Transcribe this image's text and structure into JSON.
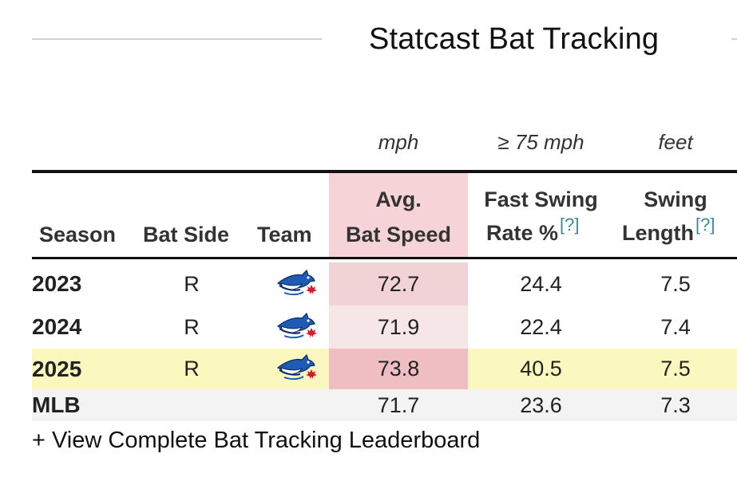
{
  "title": "Statcast Bat Tracking",
  "units": {
    "bat_speed": "mph",
    "fast_swing": "≥ 75 mph",
    "swing_length": "feet"
  },
  "headers": {
    "season": "Season",
    "bat_side": "Bat Side",
    "team": "Team",
    "bat_speed_1": "Avg.",
    "bat_speed_2": "Bat Speed",
    "fast_swing_1": "Fast Swing",
    "fast_swing_2": "Rate %",
    "swing_length_1": "Swing",
    "swing_length_2": "Length",
    "help": "[?]"
  },
  "rows": [
    {
      "season": "2023",
      "bat_side": "R",
      "team_icon": "blue-jays-logo-icon",
      "bat_speed": "72.7",
      "fast_swing": "24.4",
      "swing_length": "7.5",
      "row_bg": "#ffffff",
      "bat_bg": "#f2d3d5"
    },
    {
      "season": "2024",
      "bat_side": "R",
      "team_icon": "blue-jays-logo-icon",
      "bat_speed": "71.9",
      "fast_swing": "22.4",
      "swing_length": "7.4",
      "row_bg": "#ffffff",
      "bat_bg": "#f7e6e7"
    },
    {
      "season": "2025",
      "bat_side": "R",
      "team_icon": "blue-jays-logo-icon",
      "bat_speed": "73.8",
      "fast_swing": "40.5",
      "swing_length": "7.5",
      "row_bg": "#fbf8bf",
      "bat_bg": "#efbec2"
    }
  ],
  "mlb": {
    "season": "MLB",
    "bat_speed": "71.7",
    "fast_swing": "23.6",
    "swing_length": "7.3",
    "row_bg": "#f3f3f3"
  },
  "link": "+ View Complete Bat Tracking Leaderboard",
  "colors": {
    "help_link": "#3d8a9c",
    "highlight_row": "#fbf8bf"
  }
}
